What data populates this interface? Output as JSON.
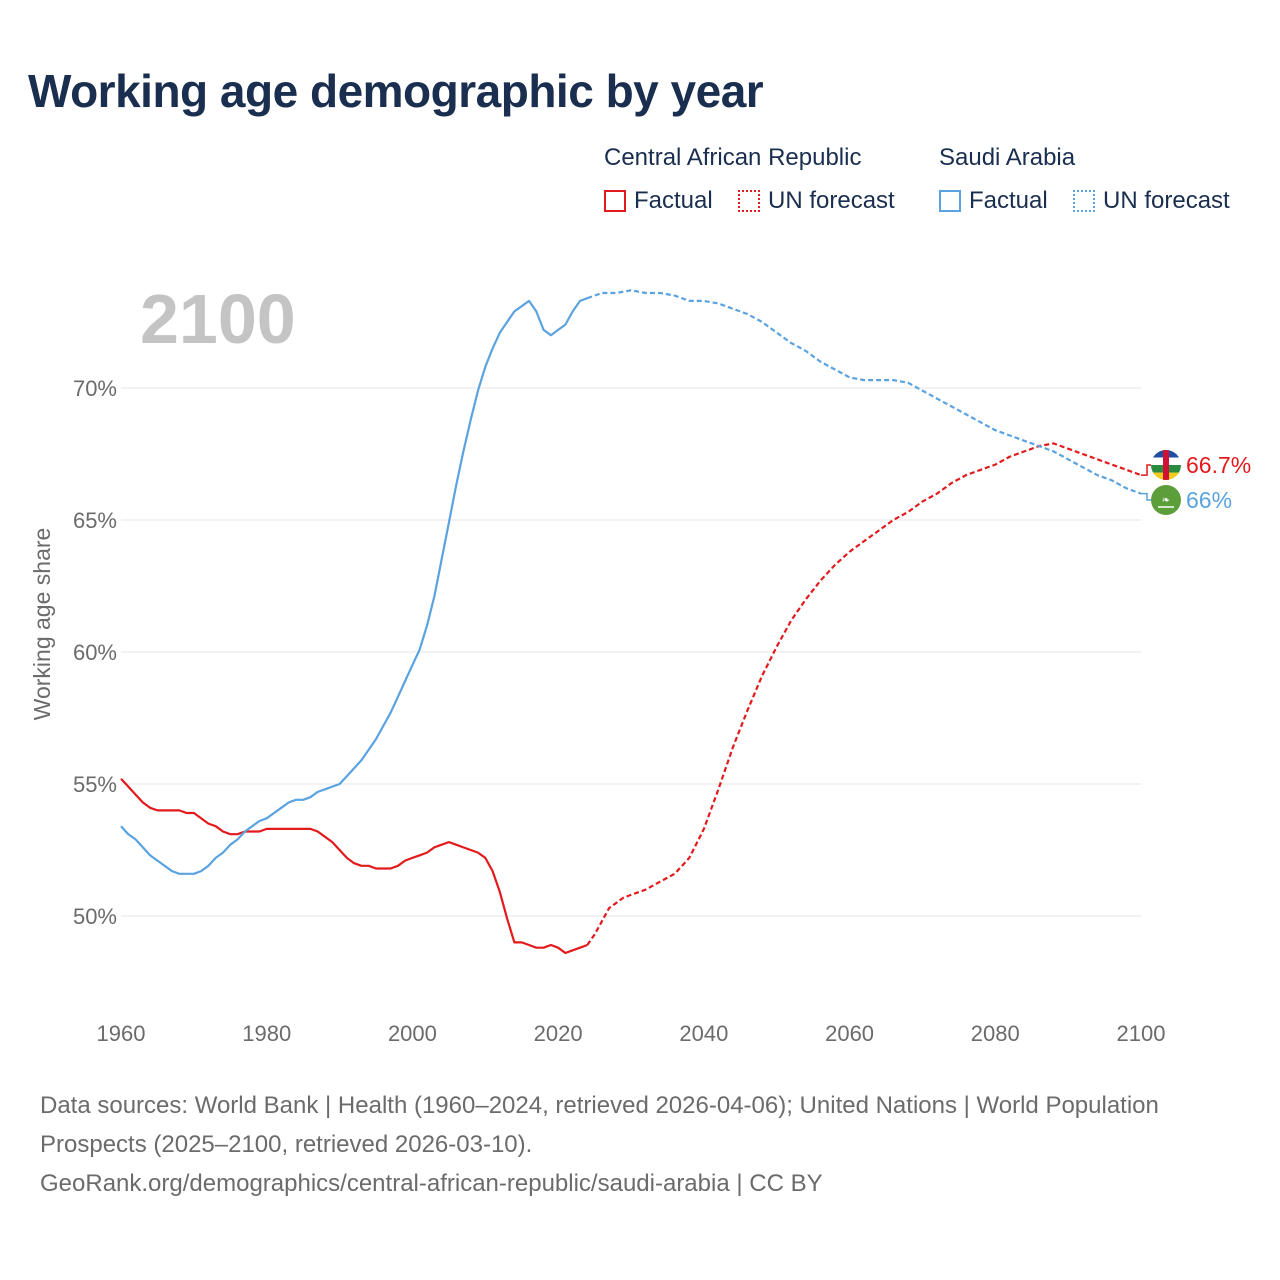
{
  "title": "Working age demographic by year",
  "legend": {
    "groups": [
      {
        "name": "Central African Republic",
        "factual": "Factual",
        "forecast": "UN forecast",
        "color": "#e31a1c"
      },
      {
        "name": "Saudi Arabia",
        "factual": "Factual",
        "forecast": "UN forecast",
        "color": "#5aa3e0"
      }
    ]
  },
  "chart_data": {
    "type": "line",
    "year_label": "2100",
    "ylabel": "Working age share",
    "xlim": [
      1960,
      2100
    ],
    "ylim": [
      46.5,
      75
    ],
    "x_ticks": [
      "1960",
      "1980",
      "2000",
      "2020",
      "2040",
      "2060",
      "2080",
      "2100"
    ],
    "y_ticks": [
      {
        "value": 50,
        "label": "50%"
      },
      {
        "value": 55,
        "label": "55%"
      },
      {
        "value": 60,
        "label": "60%"
      },
      {
        "value": 65,
        "label": "65%"
      },
      {
        "value": 70,
        "label": "70%"
      }
    ],
    "factual_end_year": 2024,
    "series": [
      {
        "name": "Central African Republic",
        "color": "#e31a1c",
        "end_label": "66.7%",
        "flag": "central-african-republic-flag-icon",
        "points": [
          [
            1960,
            55.2
          ],
          [
            1961,
            54.9
          ],
          [
            1962,
            54.6
          ],
          [
            1963,
            54.3
          ],
          [
            1964,
            54.1
          ],
          [
            1965,
            54.0
          ],
          [
            1966,
            54.0
          ],
          [
            1967,
            54.0
          ],
          [
            1968,
            54.0
          ],
          [
            1969,
            53.9
          ],
          [
            1970,
            53.9
          ],
          [
            1971,
            53.7
          ],
          [
            1972,
            53.5
          ],
          [
            1973,
            53.4
          ],
          [
            1974,
            53.2
          ],
          [
            1975,
            53.1
          ],
          [
            1976,
            53.1
          ],
          [
            1977,
            53.2
          ],
          [
            1978,
            53.2
          ],
          [
            1979,
            53.2
          ],
          [
            1980,
            53.3
          ],
          [
            1981,
            53.3
          ],
          [
            1982,
            53.3
          ],
          [
            1983,
            53.3
          ],
          [
            1984,
            53.3
          ],
          [
            1985,
            53.3
          ],
          [
            1986,
            53.3
          ],
          [
            1987,
            53.2
          ],
          [
            1988,
            53.0
          ],
          [
            1989,
            52.8
          ],
          [
            1990,
            52.5
          ],
          [
            1991,
            52.2
          ],
          [
            1992,
            52.0
          ],
          [
            1993,
            51.9
          ],
          [
            1994,
            51.9
          ],
          [
            1995,
            51.8
          ],
          [
            1996,
            51.8
          ],
          [
            1997,
            51.8
          ],
          [
            1998,
            51.9
          ],
          [
            1999,
            52.1
          ],
          [
            2000,
            52.2
          ],
          [
            2001,
            52.3
          ],
          [
            2002,
            52.4
          ],
          [
            2003,
            52.6
          ],
          [
            2004,
            52.7
          ],
          [
            2005,
            52.8
          ],
          [
            2006,
            52.7
          ],
          [
            2007,
            52.6
          ],
          [
            2008,
            52.5
          ],
          [
            2009,
            52.4
          ],
          [
            2010,
            52.2
          ],
          [
            2011,
            51.7
          ],
          [
            2012,
            50.9
          ],
          [
            2013,
            49.9
          ],
          [
            2014,
            49.0
          ],
          [
            2015,
            49.0
          ],
          [
            2016,
            48.9
          ],
          [
            2017,
            48.8
          ],
          [
            2018,
            48.8
          ],
          [
            2019,
            48.9
          ],
          [
            2020,
            48.8
          ],
          [
            2021,
            48.6
          ],
          [
            2022,
            48.7
          ],
          [
            2023,
            48.8
          ],
          [
            2024,
            48.9
          ],
          [
            2025,
            49.3
          ],
          [
            2026,
            49.8
          ],
          [
            2027,
            50.3
          ],
          [
            2028,
            50.5
          ],
          [
            2029,
            50.7
          ],
          [
            2030,
            50.8
          ],
          [
            2032,
            51.0
          ],
          [
            2034,
            51.3
          ],
          [
            2036,
            51.6
          ],
          [
            2038,
            52.2
          ],
          [
            2040,
            53.3
          ],
          [
            2042,
            54.8
          ],
          [
            2044,
            56.4
          ],
          [
            2046,
            57.8
          ],
          [
            2048,
            59.1
          ],
          [
            2050,
            60.2
          ],
          [
            2052,
            61.2
          ],
          [
            2054,
            62.0
          ],
          [
            2056,
            62.7
          ],
          [
            2058,
            63.3
          ],
          [
            2060,
            63.8
          ],
          [
            2062,
            64.2
          ],
          [
            2064,
            64.6
          ],
          [
            2066,
            65.0
          ],
          [
            2068,
            65.3
          ],
          [
            2070,
            65.7
          ],
          [
            2072,
            66.0
          ],
          [
            2074,
            66.4
          ],
          [
            2076,
            66.7
          ],
          [
            2078,
            66.9
          ],
          [
            2080,
            67.1
          ],
          [
            2082,
            67.4
          ],
          [
            2084,
            67.6
          ],
          [
            2086,
            67.8
          ],
          [
            2088,
            67.9
          ],
          [
            2090,
            67.7
          ],
          [
            2092,
            67.5
          ],
          [
            2094,
            67.3
          ],
          [
            2096,
            67.1
          ],
          [
            2098,
            66.9
          ],
          [
            2100,
            66.7
          ]
        ]
      },
      {
        "name": "Saudi Arabia",
        "color": "#5aa3e0",
        "end_label": "66%",
        "flag": "saudi-arabia-flag-icon",
        "points": [
          [
            1960,
            53.4
          ],
          [
            1961,
            53.1
          ],
          [
            1962,
            52.9
          ],
          [
            1963,
            52.6
          ],
          [
            1964,
            52.3
          ],
          [
            1965,
            52.1
          ],
          [
            1966,
            51.9
          ],
          [
            1967,
            51.7
          ],
          [
            1968,
            51.6
          ],
          [
            1969,
            51.6
          ],
          [
            1970,
            51.6
          ],
          [
            1971,
            51.7
          ],
          [
            1972,
            51.9
          ],
          [
            1973,
            52.2
          ],
          [
            1974,
            52.4
          ],
          [
            1975,
            52.7
          ],
          [
            1976,
            52.9
          ],
          [
            1977,
            53.2
          ],
          [
            1978,
            53.4
          ],
          [
            1979,
            53.6
          ],
          [
            1980,
            53.7
          ],
          [
            1981,
            53.9
          ],
          [
            1982,
            54.1
          ],
          [
            1983,
            54.3
          ],
          [
            1984,
            54.4
          ],
          [
            1985,
            54.4
          ],
          [
            1986,
            54.5
          ],
          [
            1987,
            54.7
          ],
          [
            1988,
            54.8
          ],
          [
            1989,
            54.9
          ],
          [
            1990,
            55.0
          ],
          [
            1991,
            55.3
          ],
          [
            1992,
            55.6
          ],
          [
            1993,
            55.9
          ],
          [
            1994,
            56.3
          ],
          [
            1995,
            56.7
          ],
          [
            1996,
            57.2
          ],
          [
            1997,
            57.7
          ],
          [
            1998,
            58.3
          ],
          [
            1999,
            58.9
          ],
          [
            2000,
            59.5
          ],
          [
            2001,
            60.1
          ],
          [
            2002,
            61.0
          ],
          [
            2003,
            62.1
          ],
          [
            2004,
            63.5
          ],
          [
            2005,
            64.9
          ],
          [
            2006,
            66.3
          ],
          [
            2007,
            67.6
          ],
          [
            2008,
            68.8
          ],
          [
            2009,
            69.9
          ],
          [
            2010,
            70.8
          ],
          [
            2011,
            71.5
          ],
          [
            2012,
            72.1
          ],
          [
            2013,
            72.5
          ],
          [
            2014,
            72.9
          ],
          [
            2015,
            73.1
          ],
          [
            2016,
            73.3
          ],
          [
            2017,
            72.9
          ],
          [
            2018,
            72.2
          ],
          [
            2019,
            72.0
          ],
          [
            2020,
            72.2
          ],
          [
            2021,
            72.4
          ],
          [
            2022,
            72.9
          ],
          [
            2023,
            73.3
          ],
          [
            2024,
            73.4
          ],
          [
            2025,
            73.5
          ],
          [
            2026,
            73.6
          ],
          [
            2028,
            73.6
          ],
          [
            2030,
            73.7
          ],
          [
            2032,
            73.6
          ],
          [
            2034,
            73.6
          ],
          [
            2036,
            73.5
          ],
          [
            2038,
            73.3
          ],
          [
            2040,
            73.3
          ],
          [
            2042,
            73.2
          ],
          [
            2044,
            73.0
          ],
          [
            2046,
            72.8
          ],
          [
            2048,
            72.5
          ],
          [
            2050,
            72.1
          ],
          [
            2052,
            71.7
          ],
          [
            2054,
            71.4
          ],
          [
            2056,
            71.0
          ],
          [
            2058,
            70.7
          ],
          [
            2060,
            70.4
          ],
          [
            2062,
            70.3
          ],
          [
            2064,
            70.3
          ],
          [
            2066,
            70.3
          ],
          [
            2068,
            70.2
          ],
          [
            2070,
            69.9
          ],
          [
            2072,
            69.6
          ],
          [
            2074,
            69.3
          ],
          [
            2076,
            69.0
          ],
          [
            2078,
            68.7
          ],
          [
            2080,
            68.4
          ],
          [
            2082,
            68.2
          ],
          [
            2084,
            68.0
          ],
          [
            2086,
            67.8
          ],
          [
            2088,
            67.6
          ],
          [
            2090,
            67.3
          ],
          [
            2092,
            67.0
          ],
          [
            2094,
            66.7
          ],
          [
            2096,
            66.5
          ],
          [
            2098,
            66.2
          ],
          [
            2100,
            66.0
          ]
        ]
      }
    ]
  },
  "footer": {
    "line1": "Data sources: World Bank | Health (1960–2024, retrieved 2026-04-06); United Nations | World Population Prospects (2025–2100, retrieved 2026-03-10).",
    "line2": "GeoRank.org/demographics/central-african-republic/saudi-arabia | CC BY"
  }
}
